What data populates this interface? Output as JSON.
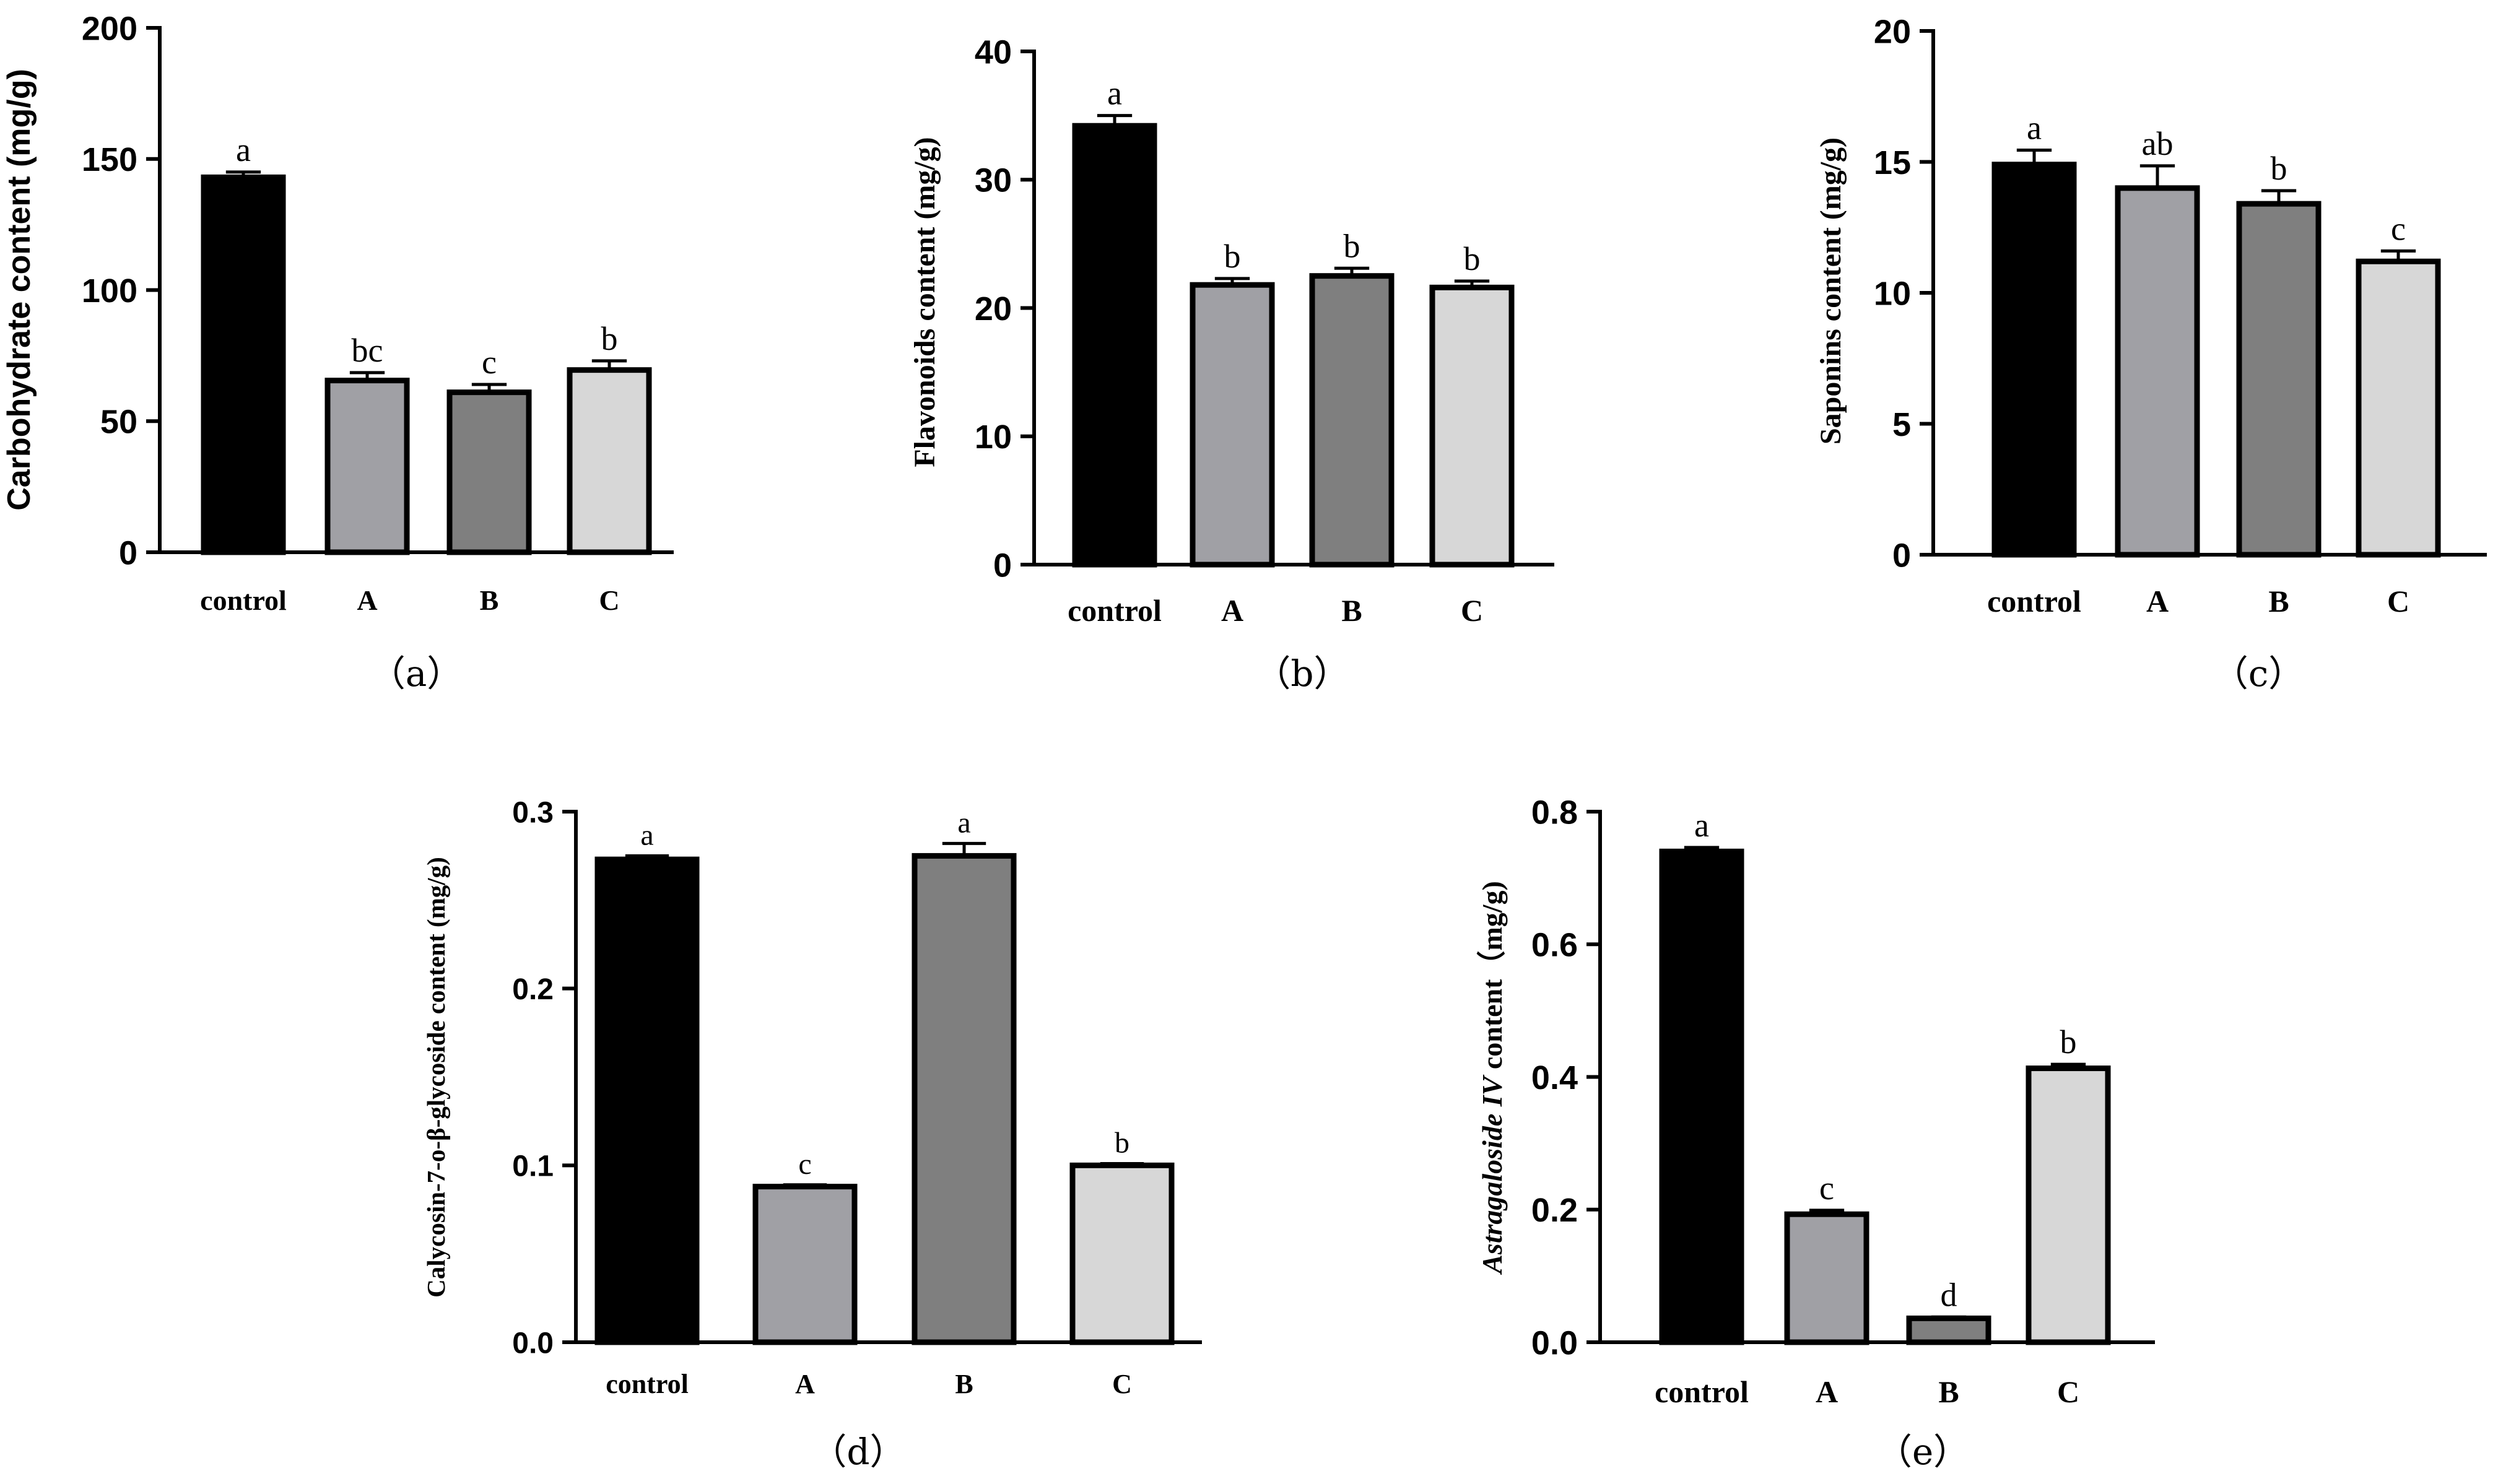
{
  "colors": {
    "control": "#000000",
    "A": "#a0a0a5",
    "B": "#7f7f7f",
    "C": "#d7d7d7",
    "axis": "#000000"
  },
  "chart_data": [
    {
      "type": "bar",
      "panel": "(a)",
      "categories": [
        "control",
        "A",
        "B",
        "C"
      ],
      "values": [
        143,
        65.5,
        61,
        69.5
      ],
      "errors": [
        2,
        3,
        3,
        3.5
      ],
      "significance": [
        "a",
        "bc",
        "c",
        "b"
      ],
      "ylabel": "Carbohydrate content (mg/g)",
      "ylim": [
        0,
        200
      ],
      "yticks": [
        0,
        50,
        100,
        150,
        200
      ],
      "ytick_labels": [
        "0",
        "50",
        "100",
        "150",
        "200"
      ],
      "grid": false
    },
    {
      "type": "bar",
      "panel": "(b)",
      "categories": [
        "control",
        "A",
        "B",
        "C"
      ],
      "values": [
        34.2,
        21.8,
        22.5,
        21.6
      ],
      "errors": [
        0.8,
        0.5,
        0.6,
        0.5
      ],
      "significance": [
        "a",
        "b",
        "b",
        "b"
      ],
      "ylabel": "Flavonoids content  (mg/g)",
      "ylim": [
        0,
        40
      ],
      "yticks": [
        0,
        10,
        20,
        30,
        40
      ],
      "ytick_labels": [
        "0",
        "10",
        "20",
        "30",
        "40"
      ],
      "grid": false
    },
    {
      "type": "bar",
      "panel": "(c)",
      "categories": [
        "control",
        "A",
        "B",
        "C"
      ],
      "values": [
        14.9,
        14,
        13.4,
        11.2
      ],
      "errors": [
        0.55,
        0.85,
        0.5,
        0.4
      ],
      "significance": [
        "a",
        "ab",
        "b",
        "c"
      ],
      "ylabel": "Saponins content (mg/g)",
      "ylim": [
        0,
        20
      ],
      "yticks": [
        0,
        5,
        10,
        15,
        20
      ],
      "ytick_labels": [
        "0",
        "5",
        "10",
        "15",
        "20"
      ],
      "grid": false
    },
    {
      "type": "bar",
      "panel": "(d)",
      "categories": [
        "control",
        "A",
        "B",
        "C"
      ],
      "values": [
        0.273,
        0.088,
        0.275,
        0.1
      ],
      "errors": [
        0.002,
        0.001,
        0.007,
        0.001
      ],
      "significance": [
        "a",
        "c",
        "a",
        "b"
      ],
      "ylabel": "Calycosin-7-o-β-glycoside content (mg/g)",
      "ylim": [
        0,
        0.3
      ],
      "yticks": [
        0,
        0.1,
        0.2,
        0.3
      ],
      "ytick_labels": [
        "0.0",
        "0.1",
        "0.2",
        "0.3"
      ],
      "grid": false
    },
    {
      "type": "bar",
      "panel": "(e)",
      "categories": [
        "control",
        "A",
        "B",
        "C"
      ],
      "values": [
        0.74,
        0.193,
        0.036,
        0.413
      ],
      "errors": [
        0.006,
        0.006,
        0.002,
        0.006
      ],
      "significance": [
        "a",
        "c",
        "d",
        "b"
      ],
      "ylabel_italic": "Astragaloside IV",
      "ylabel": " content（mg/g)",
      "ylim": [
        0,
        0.8
      ],
      "yticks": [
        0,
        0.2,
        0.4,
        0.6,
        0.8
      ],
      "ytick_labels": [
        "0.0",
        "0.2",
        "0.4",
        "0.6",
        "0.8"
      ],
      "grid": false
    }
  ]
}
